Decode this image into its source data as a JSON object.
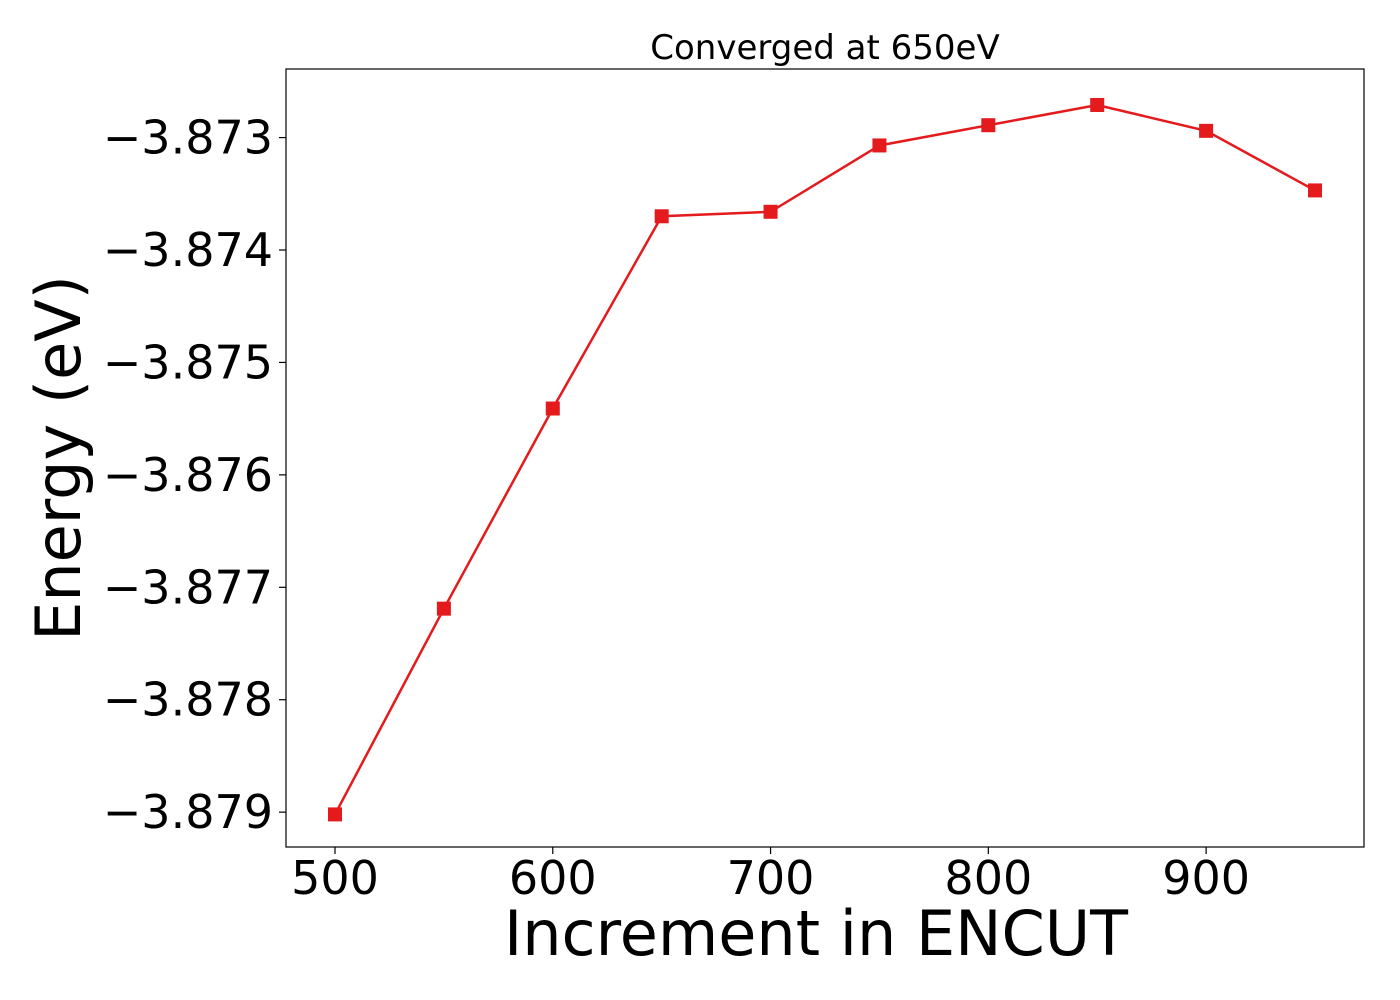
{
  "chart_data": {
    "type": "line",
    "title": "Converged at 650eV",
    "xlabel": "Increment in ENCUT",
    "ylabel": "Energy (eV)",
    "xlim": [
      477.5,
      972.5
    ],
    "ylim": [
      -3.87931,
      -3.87239
    ],
    "x_ticks": [
      500,
      600,
      700,
      800,
      900
    ],
    "y_ticks": [
      -3.879,
      -3.878,
      -3.877,
      -3.876,
      -3.875,
      -3.874,
      -3.873
    ],
    "y_tick_labels": [
      "−3.879",
      "−3.878",
      "−3.877",
      "−3.876",
      "−3.875",
      "−3.874",
      "−3.873"
    ],
    "grid": false,
    "legend": "none",
    "series": [
      {
        "color": "#e41a1c",
        "marker": "square",
        "x": [
          500,
          550,
          600,
          650,
          700,
          750,
          800,
          850,
          900,
          950
        ],
        "y": [
          -3.87902,
          -3.87719,
          -3.87541,
          -3.8737,
          -3.87366,
          -3.87307,
          -3.87289,
          -3.87271,
          -3.87294,
          -3.87347
        ]
      }
    ]
  }
}
